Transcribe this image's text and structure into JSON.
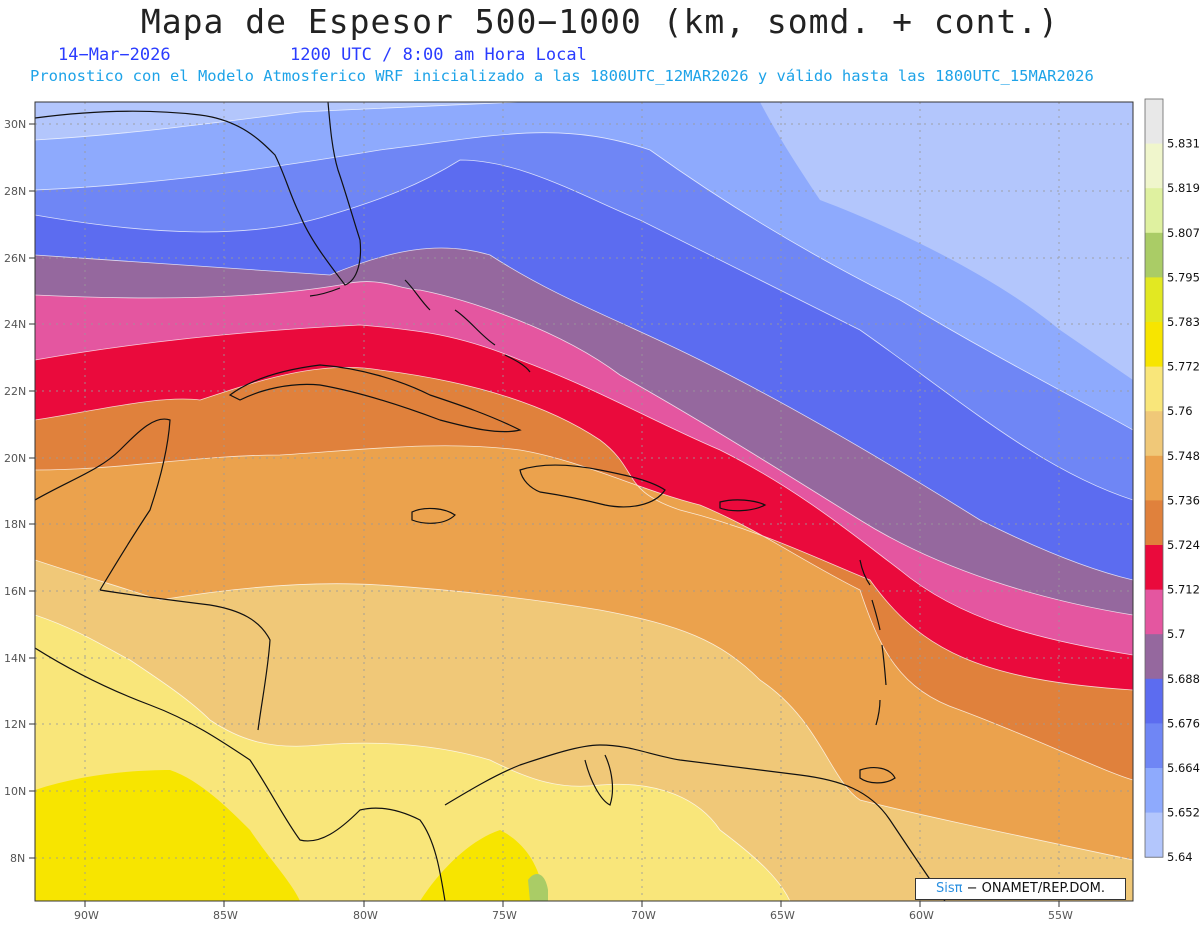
{
  "title": "Mapa de Espesor 500−1000 (km, somd. + cont.)",
  "date": "14−Mar−2026",
  "time": "1200 UTC / 8:00 am Hora Local",
  "subtitle": "Pronostico con el Modelo Atmosferico WRF inicializado a las 1800UTC_12MAR2026 y válido hasta las  1800UTC_15MAR2026",
  "credit": {
    "brand": "Sisπ",
    "text": " − ONAMET/REP.DOM."
  },
  "lat_labels": [
    "30N",
    "28N",
    "26N",
    "24N",
    "22N",
    "20N",
    "18N",
    "16N",
    "14N",
    "12N",
    "10N",
    "8N"
  ],
  "lon_labels": [
    "90W",
    "85W",
    "80W",
    "75W",
    "70W",
    "65W",
    "60W",
    "55W"
  ],
  "colorbar": {
    "labels": [
      "5.831",
      "5.819",
      "5.807",
      "5.795",
      "5.783",
      "5.772",
      "5.76",
      "5.748",
      "5.736",
      "5.724",
      "5.712",
      "5.7",
      "5.688",
      "5.676",
      "5.664",
      "5.652",
      "5.64"
    ],
    "colors": [
      "#e8e8e8",
      "#f0f6cc",
      "#dff1a0",
      "#aacc66",
      "#e2e822",
      "#f7e500",
      "#f9e67a",
      "#f0c878",
      "#eba24d",
      "#e0813c",
      "#ea0a3c",
      "#e456a0",
      "#95689e",
      "#5c6cf0",
      "#6f86f5",
      "#8eaafd",
      "#b3c6fc"
    ]
  },
  "map_layers": [
    {
      "name": "band-5.652",
      "color": "#8eaafd"
    },
    {
      "name": "band-5.664",
      "color": "#6f86f5"
    },
    {
      "name": "band-5.676",
      "color": "#5c6cf0"
    },
    {
      "name": "band-5.688",
      "color": "#95689e"
    },
    {
      "name": "band-5.7",
      "color": "#e456a0"
    },
    {
      "name": "band-5.712",
      "color": "#ea0a3c"
    },
    {
      "name": "band-5.724",
      "color": "#e0813c"
    },
    {
      "name": "band-5.736",
      "color": "#eba24d"
    },
    {
      "name": "band-5.748",
      "color": "#f0c878"
    },
    {
      "name": "band-5.76",
      "color": "#f9e67a"
    },
    {
      "name": "band-5.772",
      "color": "#f7e500"
    }
  ]
}
